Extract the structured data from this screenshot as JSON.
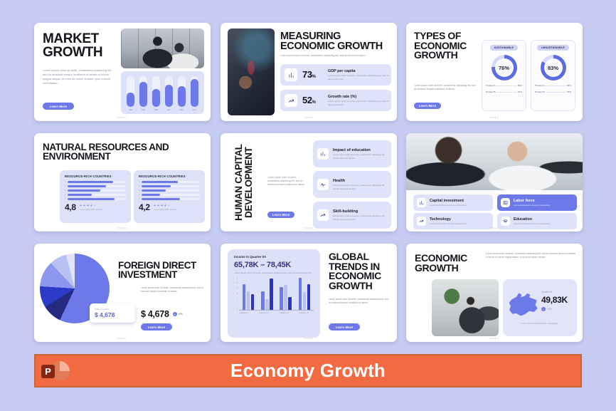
{
  "banner": {
    "title": "Economy Growth",
    "icon_letter": "P",
    "bg": "#f26a42"
  },
  "colors": {
    "background": "#c6ccf1",
    "accent": "#6d79e8",
    "accent_dark": "#2b35c0",
    "accent_light": "#b9c0f2",
    "track": "#eef0fc",
    "donut_fill": "#5b6be0",
    "donut_track": "#d6daf7",
    "card": "#dfe3fa",
    "banner_orange": "#f26a42"
  },
  "lorem": {
    "a": "Lorem ipsum dolor sit amet, consectetur adipiscing elit, sed do eiusmod tempor incididunt ut labore et dolore magna aliqua. Ut enim ad minim veniam, quis nostrud exercitation.",
    "b": "Lorem ipsum dolor sit amet, consectetur adipiscing elit, sed do eiusmod tempor incididunt ut labore et dolore magna aliqua. Ut enim ad minim veniam.",
    "c": "Lorem ipsum dolor sit amet, consectetur adipiscing elit, sed do eiusmod tempor incididunt ut labore.",
    "d": "Lorem ipsum dolor sit amet, consectetur adipiscing elit, sed do eiusmod tempor.",
    "e": "Lorem ipsum dolor sit amet, consectetur"
  },
  "slides": [
    {
      "title": "MARKET GROWTH",
      "button": "Learn More",
      "footer": "PAGE 1",
      "chart": {
        "type": "bar",
        "categories": [
          "Jan",
          "Feb",
          "Mar",
          "Apr",
          "May",
          "Jun"
        ],
        "values": [
          45,
          82,
          58,
          72,
          66,
          90
        ],
        "ylim": [
          0,
          100
        ]
      }
    },
    {
      "title": "MEASURING ECONOMIC GROWTH",
      "footer": "PAGE 2",
      "stats": [
        {
          "value": "73",
          "unit": "%",
          "label": "GDP per capita"
        },
        {
          "value": "52",
          "unit": "%",
          "label": "Growth rate (%)"
        }
      ]
    },
    {
      "title": "TYPES OF ECONOMIC GROWTH",
      "button": "Learn More",
      "footer": "PAGE 3",
      "cards": [
        {
          "tag": "SUSTAINABLE",
          "percent": 76,
          "percent_label": "76%",
          "rows": [
            {
              "name": "Product A",
              "value": "89%"
            },
            {
              "name": "Product B",
              "value": "12%"
            }
          ]
        },
        {
          "tag": "UNSUSTAINABLE",
          "percent": 83,
          "percent_label": "83%",
          "rows": [
            {
              "name": "Product A",
              "value": "35%"
            },
            {
              "name": "Product B",
              "value": "76%"
            }
          ]
        }
      ]
    },
    {
      "title": "NATURAL RESOURCES AND ENVIRONMENT",
      "footer": "PAGE 4",
      "cards": [
        {
          "header": "RESOURCE-RICH COUNTRIES",
          "row_labels": [
            "5",
            "4",
            "3",
            "2",
            "1"
          ],
          "bars": [
            78,
            66,
            56,
            42,
            80
          ],
          "rating": "4,8",
          "stars": 4,
          "note": "Lorem ipsum dolor sit amet"
        },
        {
          "header": "RESOURCE-RICH COUNTRIES",
          "row_labels": [
            "5",
            "4",
            "3",
            "2",
            "1"
          ],
          "bars": [
            62,
            50,
            42,
            32,
            66
          ],
          "rating": "4,2",
          "stars": 4,
          "note": "Lorem ipsum dolor sit amet"
        }
      ]
    },
    {
      "title": "HUMAN CAPITAL DEVELOPMENT",
      "button": "Learn More",
      "footer": "PAGE 5",
      "items": [
        {
          "label": "Impact of education"
        },
        {
          "label": "Health"
        },
        {
          "label": "Skill-building"
        }
      ]
    },
    {
      "footer": "PAGE 6",
      "cards": [
        {
          "label": "Capital investment",
          "highlight": false
        },
        {
          "label": "Labor force",
          "highlight": true
        },
        {
          "label": "Technology",
          "highlight": false
        },
        {
          "label": "Education",
          "highlight": false
        }
      ]
    },
    {
      "title": "FOREIGN DIRECT INVESTMENT",
      "button": "Learn More",
      "footer": "PAGE 7",
      "tooltip": {
        "label": "Highest income",
        "value": "$ 4,678"
      },
      "value": "$ 4,678",
      "badge_plus": "+",
      "badge": "+2%",
      "pie": {
        "type": "pie",
        "slices": [
          {
            "value": 57,
            "color": "#6d79e8"
          },
          {
            "value": 9,
            "color": "#232a80"
          },
          {
            "value": 10,
            "color": "#2b3bc7"
          },
          {
            "value": 12,
            "color": "#8d97ee"
          },
          {
            "value": 8,
            "color": "#b9c0f2"
          },
          {
            "value": 4,
            "color": "#dfe3fb"
          }
        ]
      }
    },
    {
      "card_label": "Income in Quarter 03",
      "range": "65,78K – 78,45K",
      "title": "GLOBAL TRENDS IN ECONOMIC GROWTH",
      "button": "Learn More",
      "footer": "PAGE 8",
      "chart": {
        "type": "grouped-bar",
        "ymax": 6,
        "yticks": [
          "6",
          "5",
          "4",
          "3",
          "2",
          "1",
          "0"
        ],
        "categories": [
          "Category 1",
          "Category 2",
          "Category 3",
          "Category 4"
        ],
        "series": [
          {
            "name": "series-a",
            "color": "#6d79e8",
            "values": [
              4.8,
              3.4,
              4.2,
              5.9
            ]
          },
          {
            "name": "series-b",
            "color": "#b9c0f2",
            "values": [
              3.4,
              2.0,
              4.6,
              3.3
            ]
          },
          {
            "name": "series-c",
            "color": "#2b35c0",
            "values": [
              2.9,
              5.8,
              2.4,
              4.7
            ]
          }
        ]
      }
    },
    {
      "title": "ECONOMIC GROWTH",
      "footer": "PAGE 9",
      "stat": {
        "label": "Quarter 04",
        "value": "49,83K",
        "badge_plus": "+",
        "badge": "+1%"
      }
    }
  ]
}
